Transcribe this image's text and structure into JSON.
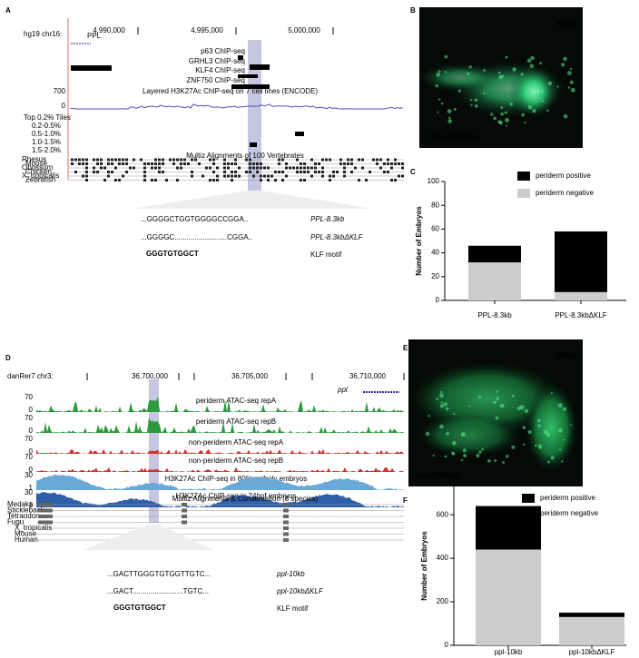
{
  "panel_labels": [
    "A",
    "B",
    "C",
    "D",
    "E",
    "F"
  ],
  "browser_a": {
    "assembly": "hg19 chr16:",
    "coords": [
      "4,990,000",
      "4,995,000",
      "5,000,000"
    ],
    "gene": "PPL",
    "tracks": [
      "p63 ChIP-seq",
      "GRHL3 ChIP-seq",
      "KLF4 ChIP-seq",
      "ZNF750 ChIP-seq",
      "Layered H3K27Ac ChIP-seq on 7 cell lines (ENCODE)"
    ],
    "scale": [
      "700",
      "0"
    ],
    "tiles": [
      "Top 0.2% Tiles",
      "0.2-0.5%",
      "0.5-1.0%",
      "1.0-1.5%",
      "1.5-2.0%"
    ],
    "multiz": "Multiz Alignments of 100 Vertebrates",
    "species": [
      "Rhesus",
      "Mouse",
      "Opossum",
      "Chicken",
      "X_tropicalis",
      "Zebrafish"
    ],
    "sequences": [
      "...GGGGCTGGTGGGGCCGGA..",
      "...GGGGC..........................CGGA.."
    ],
    "sequence_labels": [
      "PPL-8.3kb",
      "PPL-8.3kbΔKLF"
    ],
    "motif": "GGGTGTGGCT",
    "motif_label": "KLF motif"
  },
  "image_b": {
    "stage": "48hpf",
    "construct": "PPL-8.3kb:gfp"
  },
  "browser_d": {
    "assembly": "danRer7 chr3:",
    "coords": [
      "36,700,000",
      "36,705,000",
      "36,710,000"
    ],
    "gene": "ppl",
    "tracks": [
      {
        "name": "periderm ATAC-seq repA",
        "max": "70",
        "min": "0"
      },
      {
        "name": "periderm ATAC-seq repB",
        "max": "70",
        "min": "0"
      },
      {
        "name": "non-periderm ATAC-seq repA",
        "max": "70",
        "min": "0"
      },
      {
        "name": "non-periderm ATAC-seq repB",
        "max": "70",
        "min": "0"
      },
      {
        "name": "H3K27Ac ChIP-seq in 80% epiboly embryos",
        "max": "30",
        "min": "1"
      },
      {
        "name": "H3K27Ac ChIP-seq in 24hpf embryos",
        "max": "30",
        "min": "1"
      }
    ],
    "multiz": "Multiz Alignments & Conservation (8 species)",
    "species": [
      "Medaka",
      "Stickleback",
      "Tetraodon",
      "Fugu",
      "X_tropicalis",
      "Mouse",
      "Human"
    ],
    "sequences": [
      "...GACTTGGGTGTGGTTGTC...",
      "...GACT.........................TGTC..."
    ],
    "sequence_labels": [
      "ppl-10kb",
      "ppl-10kbΔKLF"
    ],
    "motif": "GGGTGTGGCT",
    "motif_label": "KLF motif"
  },
  "image_e": {
    "stage": "48hpf",
    "construct": "ppl-10kb:gfp"
  },
  "chart_data": [
    {
      "type": "bar",
      "ylabel": "Number of Embryos",
      "categories": [
        "PPL-8.3kb",
        "PPL-8.3kbΔKLF"
      ],
      "series": [
        {
          "name": "periderm negative",
          "color": "#cccccc",
          "values": [
            32,
            7
          ]
        },
        {
          "name": "periderm positive",
          "color": "#000000",
          "values": [
            14,
            51
          ]
        }
      ],
      "ylim": [
        0,
        100
      ],
      "yticks": [
        0,
        20,
        40,
        60,
        80,
        100
      ]
    },
    {
      "type": "bar",
      "ylabel": "Number of Embryos",
      "categories": [
        "ppl-10kb",
        "ppl-10kbΔKLF"
      ],
      "series": [
        {
          "name": "periderm negative",
          "color": "#cccccc",
          "values": [
            440,
            130
          ]
        },
        {
          "name": "periderm positive",
          "color": "#000000",
          "values": [
            200,
            20
          ]
        }
      ],
      "ylim": [
        0,
        730
      ],
      "yticks": [
        0,
        200,
        400,
        600
      ]
    }
  ]
}
